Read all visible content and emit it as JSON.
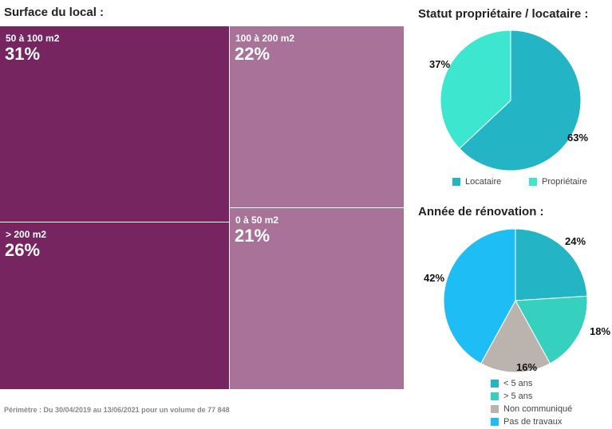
{
  "treemap": {
    "title": "Surface du local :",
    "cells": [
      {
        "label": "50 à 100 m2",
        "pct": "31%",
        "value": 31
      },
      {
        "label": "> 200 m2",
        "pct": "26%",
        "value": 26
      },
      {
        "label": "100 à 200 m2",
        "pct": "22%",
        "value": 22
      },
      {
        "label": "0 à 50 m2",
        "pct": "21%",
        "value": 21
      }
    ]
  },
  "chart_data": [
    {
      "type": "pie",
      "title": "Statut propriétaire / locataire :",
      "categories": [
        "Locataire",
        "Propriétaire"
      ],
      "values": [
        63,
        37
      ],
      "labels": [
        "63%",
        "37%"
      ],
      "colors": [
        "#23b5c5",
        "#3de6cf"
      ],
      "legend": "bottom"
    },
    {
      "type": "pie",
      "title": "Année de rénovation :",
      "categories": [
        "< 5 ans",
        "> 5 ans",
        "Non communiqué",
        "Pas de travaux"
      ],
      "values": [
        24,
        18,
        16,
        42
      ],
      "labels": [
        "24%",
        "18%",
        "16%",
        "42%"
      ],
      "colors": [
        "#23b5c5",
        "#35d0be",
        "#bab3ae",
        "#1fbdf5"
      ],
      "legend": "bottom"
    }
  ],
  "footer": "Périmètre : Du 30/04/2019 au 13/06/2021 pour un volume de 77 848"
}
